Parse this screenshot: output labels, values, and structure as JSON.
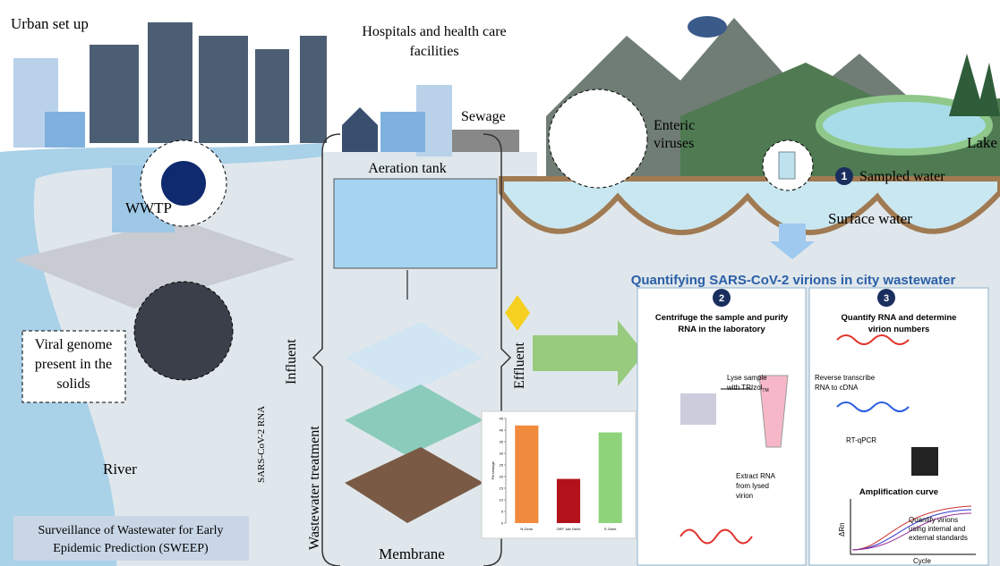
{
  "urban": "Urban set up",
  "hospitals": [
    "Hospitals and health care",
    "facilities"
  ],
  "sewage": "Sewage",
  "enteric": [
    "Enteric",
    "viruses"
  ],
  "lake": "Lake",
  "sampled": {
    "step": "1",
    "label": "Sampled water"
  },
  "surface": "Surface water",
  "wwtp": "WWTP",
  "aeration": "Aeration tank",
  "membrane": "Membrane",
  "influent": "Influent",
  "treatment": "Wastewater treatment",
  "effluent": "Effluent",
  "rna": "SARS-CoV-2 RNA",
  "viral_genome": [
    "Viral genome",
    "present in the",
    "solids"
  ],
  "river": "River",
  "sweep": [
    "Surveillance  of Wastewater for Early",
    "Epidemic Prediction (SWEEP)"
  ],
  "title": "Quantifying SARS-CoV-2 virions in city wastewater",
  "panel2": {
    "step": "2",
    "heading": [
      "Centrifuge the sample and purify",
      "RNA in the laboratory"
    ],
    "lyse": [
      "Lyse sample",
      "with TRIzol"
    ],
    "tm": "TM",
    "extract": [
      "Extract RNA",
      "from lysed",
      "virion"
    ]
  },
  "panel3": {
    "step": "3",
    "heading": [
      "Quantify RNA and determine",
      "virion numbers"
    ],
    "reverse": [
      "Reverse transcribe",
      "RNA to cDNA"
    ],
    "rtqpcr": "RT-qPCR",
    "amp": "Amplification curve",
    "y_label": "ΔRn",
    "x_label": "Cycle",
    "quantify": [
      "Quantify virions",
      "using internal and",
      "external standards"
    ]
  },
  "inset_chart": {
    "type": "bar",
    "categories": [
      "N Gene",
      "ORF 1ab Gene",
      "S Gene"
    ],
    "values": [
      42,
      19,
      39
    ],
    "colors": [
      "#f08a3c",
      "#b3121b",
      "#8ed37a"
    ],
    "ylim": [
      0,
      45
    ],
    "yticks": [
      0,
      5,
      10,
      15,
      20,
      25,
      30,
      35,
      40,
      45
    ],
    "y_label": "Percentage"
  }
}
